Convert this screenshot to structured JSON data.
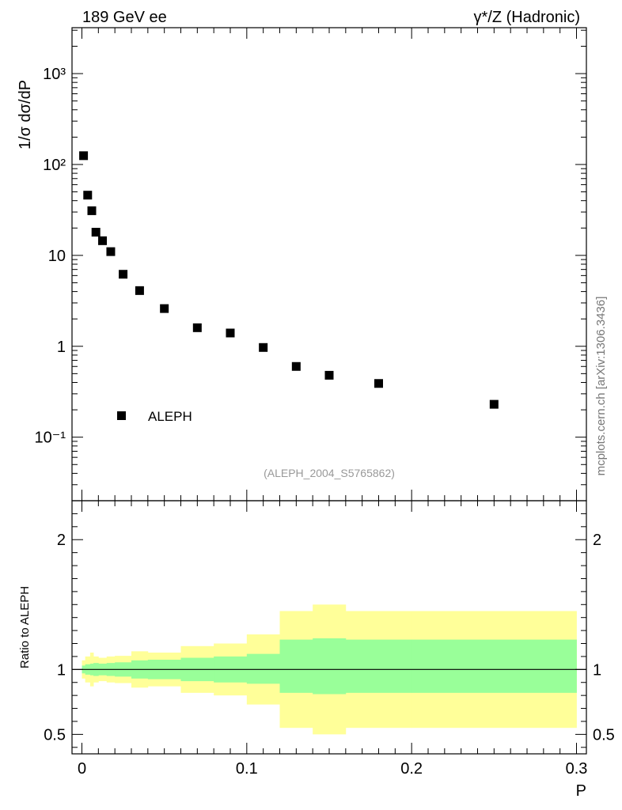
{
  "header": {
    "left_label": "189 GeV ee",
    "right_label": "γ*/Z (Hadronic)"
  },
  "watermark": "mcplots.cern.ch [arXiv:1306.3436]",
  "analysis_tag": "(ALEPH_2004_S5765862)",
  "chart_data": [
    {
      "type": "scatter",
      "scale": "log",
      "ylabel": "1/σ  dσ/dP",
      "ylim": [
        0.02,
        3200
      ],
      "xlim": [
        -0.006,
        0.306
      ],
      "y_tick_labels": [
        "10⁻¹",
        "1",
        "10",
        "10²",
        "10³"
      ],
      "legend": {
        "entry": "ALEPH",
        "position": "bottom-left"
      },
      "series": [
        {
          "name": "ALEPH",
          "color": "#000000",
          "x": [
            0.001,
            0.0035,
            0.006,
            0.0085,
            0.0125,
            0.0175,
            0.025,
            0.035,
            0.05,
            0.07,
            0.09,
            0.11,
            0.13,
            0.15,
            0.18,
            0.25
          ],
          "y": [
            125,
            46,
            31,
            18,
            14.5,
            11,
            6.2,
            4.1,
            2.6,
            1.6,
            1.4,
            0.97,
            0.6,
            0.48,
            0.39,
            0.23
          ]
        }
      ]
    },
    {
      "type": "area",
      "ylabel": "Ratio to ALEPH",
      "xlabel": "P",
      "ylim": [
        0.35,
        2.3
      ],
      "xlim": [
        -0.006,
        0.306
      ],
      "x_tick_labels": [
        "0",
        "0.1",
        "0.2",
        "0.3"
      ],
      "y_tick_labels": [
        "0.5",
        "1",
        "2"
      ],
      "reference_line": 1,
      "colors": {
        "inner_band": "#99ff99",
        "outer_band": "#ffff99"
      },
      "bins": [
        0,
        0.002,
        0.005,
        0.007,
        0.01,
        0.015,
        0.02,
        0.03,
        0.04,
        0.06,
        0.08,
        0.1,
        0.12,
        0.14,
        0.16,
        0.2,
        0.3
      ],
      "inner_band": {
        "low": [
          0.97,
          0.96,
          0.955,
          0.95,
          0.955,
          0.95,
          0.945,
          0.93,
          0.925,
          0.91,
          0.9,
          0.89,
          0.82,
          0.81,
          0.82,
          0.82
        ],
        "high": [
          1.03,
          1.04,
          1.045,
          1.05,
          1.045,
          1.05,
          1.055,
          1.07,
          1.075,
          1.09,
          1.1,
          1.12,
          1.23,
          1.24,
          1.23,
          1.23
        ]
      },
      "outer_band": {
        "low": [
          0.93,
          0.9,
          0.87,
          0.9,
          0.91,
          0.9,
          0.895,
          0.86,
          0.87,
          0.82,
          0.8,
          0.73,
          0.55,
          0.5,
          0.55,
          0.55
        ],
        "high": [
          1.07,
          1.1,
          1.13,
          1.1,
          1.09,
          1.1,
          1.105,
          1.14,
          1.13,
          1.18,
          1.2,
          1.27,
          1.45,
          1.5,
          1.45,
          1.45
        ]
      }
    }
  ]
}
